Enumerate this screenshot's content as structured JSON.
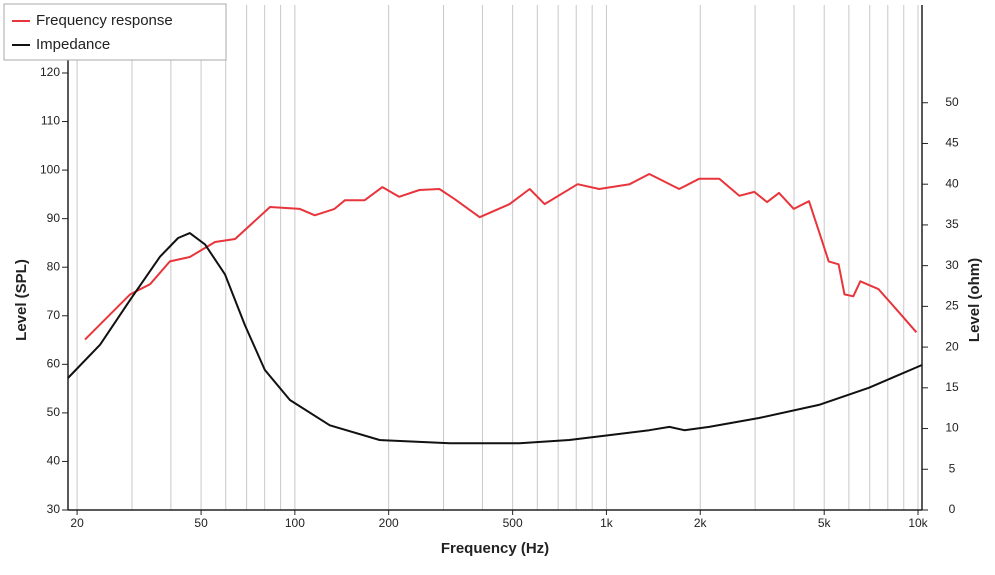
{
  "chart_data": {
    "type": "line",
    "xlabel": "Frequency (Hz)",
    "ylabel": "Level (SPL)",
    "y2label": "Level (ohm)",
    "xlog": true,
    "xlim": [
      18.7,
      10300
    ],
    "ylim": [
      30,
      134
    ],
    "y2lim": [
      0,
      62
    ],
    "xticks": [
      20,
      50,
      100,
      200,
      500,
      {
        "value": 1000,
        "label": "1k"
      },
      {
        "value": 2000,
        "label": "2k"
      },
      {
        "value": 5000,
        "label": "5k"
      },
      {
        "value": 10000,
        "label": "10k"
      }
    ],
    "xgrid": [
      20,
      30,
      40,
      50,
      60,
      70,
      80,
      90,
      100,
      200,
      300,
      400,
      500,
      600,
      700,
      800,
      900,
      1000,
      2000,
      3000,
      4000,
      5000,
      6000,
      7000,
      8000,
      9000,
      10000
    ],
    "yticks": [
      30,
      40,
      50,
      60,
      70,
      80,
      90,
      100,
      110,
      120
    ],
    "y2ticks": [
      0,
      5,
      10,
      15,
      20,
      25,
      30,
      35,
      40,
      45,
      50
    ],
    "legend": "top-left",
    "series": [
      {
        "name": "Frequency response",
        "color": "#e8353b",
        "x": [
          21.2,
          29.6,
          34.3,
          39.7,
          46,
          55.4,
          64.3,
          83.2,
          103.7,
          115.9,
          134,
          144.8,
          167.5,
          191,
          216,
          251,
          291,
          326,
          392,
          489,
          567,
          633,
          808,
          948,
          1187,
          1373,
          1712,
          1983,
          2303,
          2670,
          2983,
          3278,
          3580,
          3994,
          4470,
          4806,
          5170,
          5560,
          5810,
          6200,
          6530,
          7460,
          8640,
          9880
        ],
        "values": [
          65.1,
          74.4,
          76.5,
          81.2,
          82.1,
          85.2,
          85.8,
          92.4,
          92.0,
          90.7,
          92.0,
          93.8,
          93.8,
          96.5,
          94.5,
          95.9,
          96.1,
          94.0,
          90.3,
          93.0,
          96.1,
          93.0,
          97.1,
          96.1,
          97.1,
          99.2,
          96.1,
          98.2,
          98.2,
          94.7,
          95.5,
          93.4,
          95.3,
          92.0,
          93.6,
          87.4,
          81.2,
          80.6,
          74.4,
          74.0,
          77.1,
          75.5,
          70.9,
          66.6
        ]
      },
      {
        "name": "Impedance",
        "color": "#111111",
        "axis": "y2",
        "x": [
          18.7,
          23.7,
          29.6,
          36.9,
          42.2,
          46,
          51.5,
          59.7,
          69.1,
          80.1,
          96.4,
          129.5,
          187,
          314,
          526,
          760,
          1023,
          1373,
          1593,
          1779,
          2136,
          3087,
          4806,
          6950,
          10300
        ],
        "values": [
          16.2,
          20.3,
          25.8,
          31.1,
          33.4,
          34.0,
          32.6,
          28.9,
          22.7,
          17.2,
          13.5,
          10.4,
          8.6,
          8.2,
          8.2,
          8.6,
          9.2,
          9.8,
          10.2,
          9.8,
          10.2,
          11.3,
          12.9,
          15.0,
          17.8
        ]
      }
    ]
  }
}
